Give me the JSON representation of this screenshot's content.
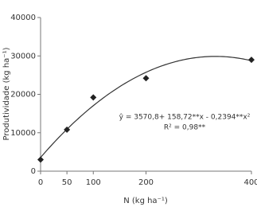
{
  "chart_data": {
    "type": "scatter",
    "x_label": "N (kg ha⁻¹)",
    "y_label": "Produtividade (kg ha⁻¹)",
    "x": [
      0,
      50,
      100,
      200,
      400
    ],
    "values": [
      3000,
      10800,
      19200,
      24200,
      29000
    ],
    "color": "#222222",
    "xlim": [
      0,
      400
    ],
    "xticks": [
      0,
      50,
      100,
      200,
      400
    ],
    "ylim": [
      0,
      40000
    ],
    "yticks": [
      0,
      10000,
      20000,
      30000,
      40000
    ],
    "fit": {
      "intercept": 3570.8,
      "linear": 158.72,
      "quadratic": -0.2394
    },
    "equation": "ŷ = 3570,8+ 158,72**x - 0,2394**x²",
    "r_squared": "R² = 0,98**"
  }
}
